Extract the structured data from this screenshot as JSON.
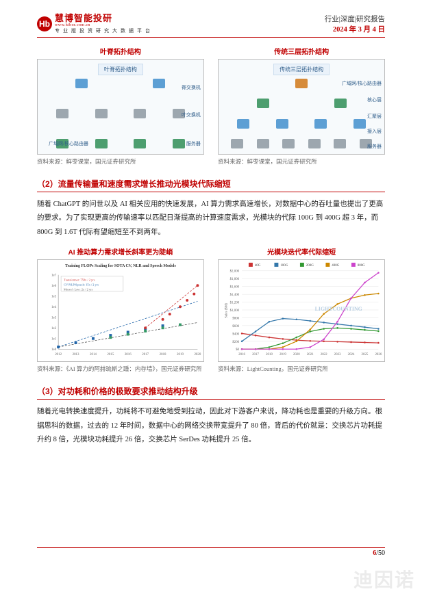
{
  "header": {
    "logo_cn": "慧博智能投研",
    "logo_en": "www.hibor.com.cn",
    "logo_sub": "专业版投资研究大数据平台",
    "report_type": "行业|深度|研究报告",
    "report_date": "2024 年 3 月 4 日"
  },
  "fig1": {
    "left_title": "叶脊拓扑结构",
    "right_title": "传统三层拓扑结构",
    "left_inner": "叶脊拓扑结构",
    "right_inner": "传统三层拓扑结构",
    "left_labels": {
      "l1": "脊交换机",
      "l2": "叶交换机",
      "l3": "广域网/核心路由器",
      "l4": "服务器"
    },
    "right_labels": {
      "l1": "广域网/核心路由器",
      "l2": "核心层",
      "l3": "汇聚层",
      "l4": "接入层",
      "l5": "服务器"
    },
    "source_left": "资料来源：鲜枣课堂，国元证券研究所",
    "source_right": "资料来源：鲜枣课堂，国元证券研究所"
  },
  "sec2": {
    "heading": "（2）流量传输量和速度需求增长推动光模块代际缩短",
    "body": "随着 ChatGPT 的问世以及 AI 相关应用的快速发展，AI 算力需求高速增长，对数据中心的吞吐量也提出了更高的要求。为了实现更高的传输速率以匹配日渐提高的计算速度需求，光模块的代际 100G 到 400G 超 3 年，而 800G 到 1.6T 代际有望缩短至不到两年。"
  },
  "fig2": {
    "left_title": "AI 推动算力需求增长斜率更为陡峭",
    "right_title": "光模块迭代率代际缩短",
    "left_chart": {
      "type": "scatter",
      "title": "Training FLOPs Scaling for SOTA CV, NLR and Speech Models",
      "x_range": [
        2012,
        2020
      ],
      "y_log_range": [
        1.0,
        10000000.0
      ],
      "legend": [
        "Transformer: 750x / 2 yrs",
        "CV/NLP/Speech: 15x / 2 yrs",
        "Moore's Law: 2x / 2 yrs"
      ],
      "colors": {
        "transformer": "#cc3333",
        "cv": "#2266aa",
        "moore": "#555555"
      },
      "points_red": [
        [
          2017,
          2.0
        ],
        [
          2018,
          2.8
        ],
        [
          2018.4,
          3.3
        ],
        [
          2019,
          4.0
        ],
        [
          2019.4,
          4.6
        ],
        [
          2019.8,
          5.2
        ],
        [
          2020,
          6.0
        ]
      ],
      "points_blue": [
        [
          2012,
          0.2
        ],
        [
          2013,
          0.6
        ],
        [
          2014,
          1.0
        ],
        [
          2015,
          1.3
        ],
        [
          2016,
          1.6
        ],
        [
          2017,
          1.9
        ],
        [
          2018,
          2.2
        ]
      ],
      "points_green": [
        [
          2015,
          1.1
        ],
        [
          2016,
          1.4
        ],
        [
          2017,
          1.7
        ],
        [
          2018,
          2.0
        ],
        [
          2019,
          2.3
        ]
      ]
    },
    "right_chart": {
      "type": "line",
      "legend": [
        "40G",
        "100G",
        "200G",
        "400G",
        "800G"
      ],
      "legend_colors": [
        "#c33",
        "#37a",
        "#393",
        "#c80",
        "#c4c"
      ],
      "x_years": [
        2016,
        2017,
        2018,
        2019,
        2020,
        2021,
        2022,
        2023,
        2024,
        2025,
        2026
      ],
      "y_label": "Sales ($M)",
      "y_ticks": [
        0,
        200,
        400,
        600,
        800,
        1000,
        1200,
        1400,
        1600,
        1800,
        2000
      ],
      "series": {
        "40G": [
          400,
          350,
          300,
          260,
          230,
          210,
          200,
          190,
          180,
          170,
          160
        ],
        "100G": [
          200,
          450,
          700,
          780,
          760,
          720,
          680,
          640,
          600,
          560,
          520
        ],
        "200G": [
          0,
          0,
          50,
          150,
          300,
          450,
          520,
          540,
          520,
          490,
          460
        ],
        "400G": [
          0,
          0,
          0,
          50,
          200,
          500,
          900,
          1150,
          1300,
          1380,
          1420
        ],
        "800G": [
          0,
          0,
          0,
          0,
          0,
          50,
          250,
          700,
          1300,
          1700,
          1950
        ]
      },
      "watermark": "LIGHTCOUNTING"
    },
    "source_left": "资料来源：《AI 算力的阿赫琉斯之踵：内存墙》，国元证券研究所",
    "source_right": "资料来源：LightCounting，国元证券研究所"
  },
  "sec3": {
    "heading": "（3）对功耗和价格的极致要求推动结构升级",
    "body": "随着光电转换速度提升，功耗将不可避免地受到拉动，因此对下游客户来说，降功耗也是重要的升级方向。根据思科的数据，过去的 12 年时间，数据中心的网络交换带宽提升了 80 倍，背后的代价就是：交换芯片功耗提升约 8 倍，光模块功耗提升 26 倍，交换芯片 SerDes 功耗提升 25 倍。"
  },
  "footer": {
    "page_cur": "6",
    "page_total": "/50"
  },
  "watermark": "迪因诺"
}
